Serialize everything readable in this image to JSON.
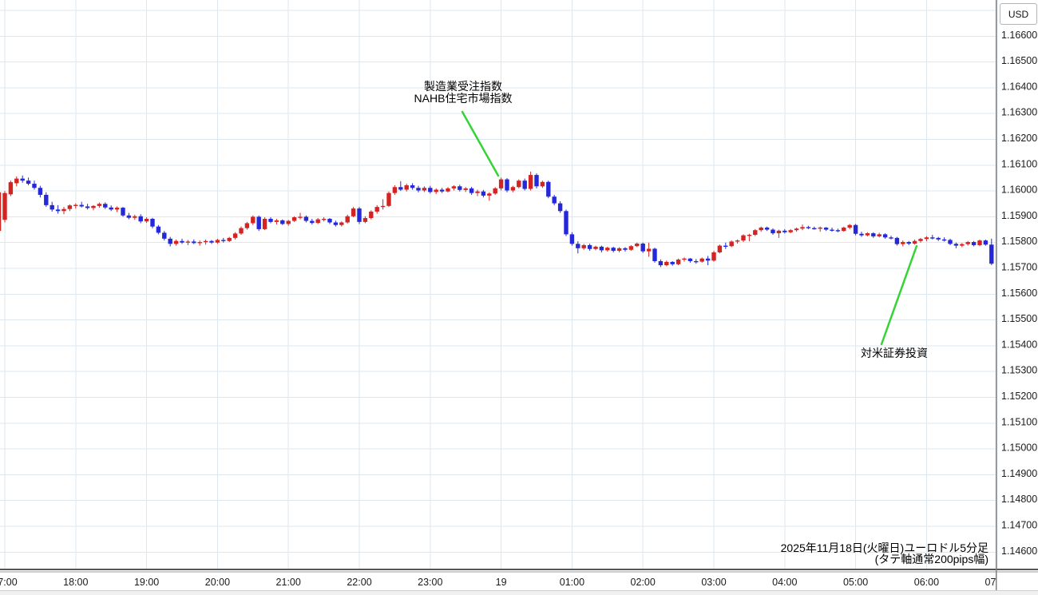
{
  "price_axis": {
    "unit_label": "USD",
    "labels": [
      "1.16600",
      "1.16500",
      "1.16400",
      "1.16300",
      "1.16200",
      "1.16100",
      "1.16000",
      "1.15900",
      "1.15800",
      "1.15700",
      "1.15600",
      "1.15500",
      "1.15400",
      "1.15300",
      "1.15200",
      "1.15100",
      "1.15000",
      "1.14900",
      "1.14800",
      "1.14700",
      "1.14600"
    ]
  },
  "time_axis": {
    "labels": [
      "17:00",
      "18:00",
      "19:00",
      "20:00",
      "21:00",
      "22:00",
      "23:00",
      "19",
      "01:00",
      "02:00",
      "03:00",
      "04:00",
      "05:00",
      "06:00",
      "07:00"
    ]
  },
  "caption": {
    "line1": "2025年11月18日(火曜日)ユーロドル5分足",
    "line2": "(タテ軸通常200pips幅)"
  },
  "annotations": [
    {
      "id": "economic-event-1",
      "lines": [
        "製造業受注指数",
        "NAHB住宅市場指数"
      ],
      "pointer_color": "#35d435",
      "line": [
        579,
        140,
        624,
        220
      ]
    },
    {
      "id": "economic-event-2",
      "lines": [
        "対米証券投資"
      ],
      "pointer_color": "#35d435",
      "line": [
        1148,
        308,
        1104,
        431
      ]
    }
  ],
  "chart_data": {
    "type": "candlestick",
    "instrument": "ユーロドル",
    "timeframe": "5分足",
    "date": "2025年11月18日(火曜日)",
    "up_color": "#d32424",
    "down_color": "#2428d8",
    "grid_color": "#dde7f0",
    "axis_line_color": "#808080",
    "y_min": 1.146,
    "y_max": 1.167,
    "y_step": 0.001,
    "y_labeled_max": 1.166,
    "legend_position": "none",
    "grid": true,
    "candles": [
      [
        "16:55",
        1.15845,
        1.16008,
        1.15838,
        1.15995
      ],
      [
        "17:00",
        1.15888,
        1.16,
        1.15878,
        1.15992
      ],
      [
        "17:05",
        1.15987,
        1.1604,
        1.1598,
        1.16034
      ],
      [
        "17:10",
        1.1603,
        1.16056,
        1.16018,
        1.16048
      ],
      [
        "17:15",
        1.16048,
        1.1606,
        1.16032,
        1.1604
      ],
      [
        "17:20",
        1.1604,
        1.16052,
        1.16022,
        1.16028
      ],
      [
        "17:25",
        1.16028,
        1.1604,
        1.16005,
        1.16012
      ],
      [
        "17:30",
        1.16012,
        1.1602,
        1.15975,
        1.15985
      ],
      [
        "17:35",
        1.15985,
        1.15995,
        1.15938,
        1.15945
      ],
      [
        "17:40",
        1.15945,
        1.15958,
        1.1592,
        1.15928
      ],
      [
        "17:45",
        1.15928,
        1.15945,
        1.15912,
        1.15922
      ],
      [
        "17:50",
        1.15922,
        1.15938,
        1.1591,
        1.1593
      ],
      [
        "17:55",
        1.1593,
        1.15948,
        1.15922,
        1.15944
      ],
      [
        "18:00",
        1.15944,
        1.15952,
        1.15932,
        1.15946
      ],
      [
        "18:05",
        1.15946,
        1.15958,
        1.15936,
        1.1594
      ],
      [
        "18:10",
        1.1594,
        1.1595,
        1.15928,
        1.15934
      ],
      [
        "18:15",
        1.15934,
        1.15945,
        1.15925,
        1.15942
      ],
      [
        "18:20",
        1.15942,
        1.15955,
        1.15935,
        1.1595
      ],
      [
        "18:25",
        1.1595,
        1.15956,
        1.1593,
        1.15936
      ],
      [
        "18:30",
        1.15936,
        1.15944,
        1.15922,
        1.15928
      ],
      [
        "18:35",
        1.15928,
        1.1594,
        1.15918,
        1.15935
      ],
      [
        "18:40",
        1.15935,
        1.15938,
        1.159,
        1.15905
      ],
      [
        "18:45",
        1.15905,
        1.15915,
        1.1589,
        1.15896
      ],
      [
        "18:50",
        1.15896,
        1.15908,
        1.15888,
        1.15902
      ],
      [
        "18:55",
        1.15902,
        1.1591,
        1.15875,
        1.15882
      ],
      [
        "19:00",
        1.15882,
        1.15898,
        1.15876,
        1.15892
      ],
      [
        "19:05",
        1.15892,
        1.15896,
        1.15855,
        1.15862
      ],
      [
        "19:10",
        1.15862,
        1.15868,
        1.15832,
        1.15838
      ],
      [
        "19:15",
        1.15838,
        1.15845,
        1.15808,
        1.15815
      ],
      [
        "19:20",
        1.15815,
        1.15822,
        1.15785,
        1.15795
      ],
      [
        "19:25",
        1.15795,
        1.15812,
        1.15788,
        1.15806
      ],
      [
        "19:30",
        1.15806,
        1.15815,
        1.15795,
        1.158
      ],
      [
        "19:35",
        1.158,
        1.1581,
        1.1579,
        1.15804
      ],
      [
        "19:40",
        1.15804,
        1.15812,
        1.15794,
        1.15798
      ],
      [
        "19:45",
        1.15798,
        1.15808,
        1.15788,
        1.15802
      ],
      [
        "19:50",
        1.15802,
        1.15812,
        1.15792,
        1.15806
      ],
      [
        "19:55",
        1.15806,
        1.1581,
        1.15795,
        1.158
      ],
      [
        "20:00",
        1.158,
        1.15815,
        1.15795,
        1.1581
      ],
      [
        "20:05",
        1.1581,
        1.15818,
        1.158,
        1.15806
      ],
      [
        "20:10",
        1.15806,
        1.15822,
        1.15802,
        1.15818
      ],
      [
        "20:15",
        1.15818,
        1.1584,
        1.15812,
        1.15835
      ],
      [
        "20:20",
        1.15835,
        1.15862,
        1.1583,
        1.15856
      ],
      [
        "20:25",
        1.15856,
        1.1588,
        1.1585,
        1.15875
      ],
      [
        "20:30",
        1.15875,
        1.15905,
        1.15868,
        1.159
      ],
      [
        "20:35",
        1.159,
        1.15905,
        1.15845,
        1.15852
      ],
      [
        "20:40",
        1.15852,
        1.15898,
        1.15848,
        1.15892
      ],
      [
        "20:45",
        1.15892,
        1.15898,
        1.15875,
        1.1588
      ],
      [
        "20:50",
        1.1588,
        1.15892,
        1.1587,
        1.15886
      ],
      [
        "20:55",
        1.15886,
        1.1589,
        1.15868,
        1.15872
      ],
      [
        "21:00",
        1.15872,
        1.15888,
        1.15865,
        1.15884
      ],
      [
        "21:05",
        1.15884,
        1.15902,
        1.1588,
        1.15898
      ],
      [
        "21:10",
        1.15898,
        1.15915,
        1.1589,
        1.159
      ],
      [
        "21:15",
        1.159,
        1.15905,
        1.15878,
        1.15884
      ],
      [
        "21:20",
        1.15884,
        1.15892,
        1.1587,
        1.15876
      ],
      [
        "21:25",
        1.15876,
        1.15895,
        1.15872,
        1.1589
      ],
      [
        "21:30",
        1.1589,
        1.15898,
        1.15882,
        1.15892
      ],
      [
        "21:35",
        1.15892,
        1.15895,
        1.15872,
        1.15878
      ],
      [
        "21:40",
        1.15878,
        1.15885,
        1.15862,
        1.15868
      ],
      [
        "21:45",
        1.15868,
        1.15882,
        1.15862,
        1.15878
      ],
      [
        "21:50",
        1.15878,
        1.15908,
        1.15874,
        1.15902
      ],
      [
        "21:55",
        1.15902,
        1.15938,
        1.15898,
        1.15932
      ],
      [
        "22:00",
        1.15932,
        1.15938,
        1.15872,
        1.1588
      ],
      [
        "22:05",
        1.1588,
        1.15902,
        1.15875,
        1.15895
      ],
      [
        "22:10",
        1.15895,
        1.15925,
        1.1589,
        1.1592
      ],
      [
        "22:15",
        1.1592,
        1.15945,
        1.15912,
        1.15938
      ],
      [
        "22:20",
        1.15938,
        1.15968,
        1.15928,
        1.15942
      ],
      [
        "22:25",
        1.15942,
        1.15998,
        1.15938,
        1.15992
      ],
      [
        "22:30",
        1.15992,
        1.16022,
        1.15985,
        1.16015
      ],
      [
        "22:35",
        1.16015,
        1.16038,
        1.16,
        1.16005
      ],
      [
        "22:40",
        1.16005,
        1.16028,
        1.15998,
        1.16022
      ],
      [
        "22:45",
        1.16022,
        1.1603,
        1.16005,
        1.16012
      ],
      [
        "22:50",
        1.16012,
        1.1602,
        1.15995,
        1.16002
      ],
      [
        "22:55",
        1.16002,
        1.16018,
        1.15996,
        1.16012
      ],
      [
        "23:00",
        1.16012,
        1.1602,
        1.1599,
        1.15996
      ],
      [
        "23:05",
        1.15996,
        1.1601,
        1.15988,
        1.16005
      ],
      [
        "23:10",
        1.16005,
        1.16012,
        1.15992,
        1.15998
      ],
      [
        "23:15",
        1.15998,
        1.16015,
        1.15994,
        1.1601
      ],
      [
        "23:20",
        1.1601,
        1.16022,
        1.16002,
        1.16018
      ],
      [
        "23:25",
        1.16018,
        1.16024,
        1.15998,
        1.16004
      ],
      [
        "23:30",
        1.16004,
        1.16015,
        1.15996,
        1.1601
      ],
      [
        "23:35",
        1.1601,
        1.16016,
        1.15985,
        1.15992
      ],
      [
        "23:40",
        1.15992,
        1.16005,
        1.1598,
        1.15998
      ],
      [
        "23:45",
        1.15998,
        1.16004,
        1.15975,
        1.15982
      ],
      [
        "23:50",
        1.15982,
        1.15995,
        1.15962,
        1.1599
      ],
      [
        "23:55",
        1.1599,
        1.16015,
        1.15985,
        1.1601
      ],
      [
        "00:00",
        1.1601,
        1.16052,
        1.16002,
        1.16045
      ],
      [
        "00:05",
        1.16045,
        1.1605,
        1.15995,
        1.16002
      ],
      [
        "00:10",
        1.16002,
        1.1602,
        1.15995,
        1.16015
      ],
      [
        "00:15",
        1.16015,
        1.16045,
        1.1601,
        1.1604
      ],
      [
        "00:20",
        1.1604,
        1.16048,
        1.16002,
        1.16008
      ],
      [
        "00:25",
        1.16008,
        1.16075,
        1.16002,
        1.16062
      ],
      [
        "00:30",
        1.16062,
        1.16068,
        1.1601,
        1.16018
      ],
      [
        "00:35",
        1.16018,
        1.1604,
        1.16012,
        1.16035
      ],
      [
        "00:40",
        1.16035,
        1.1604,
        1.15972,
        1.15978
      ],
      [
        "00:45",
        1.15978,
        1.15985,
        1.15945,
        1.15952
      ],
      [
        "00:50",
        1.15952,
        1.1596,
        1.15915,
        1.15922
      ],
      [
        "00:55",
        1.15922,
        1.15928,
        1.15825,
        1.15832
      ],
      [
        "01:00",
        1.15832,
        1.1584,
        1.15788,
        1.15795
      ],
      [
        "01:05",
        1.15795,
        1.15805,
        1.15758,
        1.15778
      ],
      [
        "01:10",
        1.15778,
        1.15795,
        1.15772,
        1.1579
      ],
      [
        "01:15",
        1.1579,
        1.15796,
        1.15768,
        1.15775
      ],
      [
        "01:20",
        1.15775,
        1.15788,
        1.1577,
        1.15784
      ],
      [
        "01:25",
        1.15784,
        1.15788,
        1.15762,
        1.1577
      ],
      [
        "01:30",
        1.1577,
        1.15784,
        1.15765,
        1.1578
      ],
      [
        "01:35",
        1.1578,
        1.15784,
        1.15762,
        1.15768
      ],
      [
        "01:40",
        1.15768,
        1.15782,
        1.15762,
        1.15778
      ],
      [
        "01:45",
        1.15778,
        1.15782,
        1.15765,
        1.15772
      ],
      [
        "01:50",
        1.15772,
        1.1579,
        1.15768,
        1.15786
      ],
      [
        "01:55",
        1.15786,
        1.158,
        1.15782,
        1.15796
      ],
      [
        "02:00",
        1.15796,
        1.158,
        1.1576,
        1.15766
      ],
      [
        "02:05",
        1.15766,
        1.158,
        1.15745,
        1.15776
      ],
      [
        "02:10",
        1.15776,
        1.1578,
        1.15722,
        1.15728
      ],
      [
        "02:15",
        1.15728,
        1.15735,
        1.15705,
        1.15712
      ],
      [
        "02:20",
        1.15712,
        1.1573,
        1.15708,
        1.15725
      ],
      [
        "02:25",
        1.15725,
        1.15728,
        1.1571,
        1.15716
      ],
      [
        "02:30",
        1.15716,
        1.15738,
        1.15712,
        1.15734
      ],
      [
        "02:35",
        1.15734,
        1.15742,
        1.15726,
        1.15738
      ],
      [
        "02:40",
        1.15738,
        1.1574,
        1.15722,
        1.15728
      ],
      [
        "02:45",
        1.15728,
        1.15736,
        1.15718,
        1.15726
      ],
      [
        "02:50",
        1.15726,
        1.15742,
        1.15722,
        1.15738
      ],
      [
        "02:55",
        1.15738,
        1.15748,
        1.15712,
        1.1573
      ],
      [
        "03:00",
        1.1573,
        1.15768,
        1.15726,
        1.15762
      ],
      [
        "03:05",
        1.15762,
        1.15792,
        1.15758,
        1.15788
      ],
      [
        "03:10",
        1.15788,
        1.158,
        1.15775,
        1.15786
      ],
      [
        "03:15",
        1.15786,
        1.15808,
        1.15782,
        1.15804
      ],
      [
        "03:20",
        1.15804,
        1.15812,
        1.15796,
        1.15808
      ],
      [
        "03:25",
        1.15808,
        1.15832,
        1.15802,
        1.15828
      ],
      [
        "03:30",
        1.15828,
        1.15834,
        1.15805,
        1.1583
      ],
      [
        "03:35",
        1.1583,
        1.15852,
        1.15825,
        1.15848
      ],
      [
        "03:40",
        1.15848,
        1.15862,
        1.15842,
        1.15858
      ],
      [
        "03:45",
        1.15858,
        1.15862,
        1.15845,
        1.1585
      ],
      [
        "03:50",
        1.1585,
        1.15855,
        1.1583,
        1.15836
      ],
      [
        "03:55",
        1.15836,
        1.1585,
        1.15818,
        1.15846
      ],
      [
        "04:00",
        1.15846,
        1.15852,
        1.15835,
        1.1584
      ],
      [
        "04:05",
        1.1584,
        1.15852,
        1.15836,
        1.15848
      ],
      [
        "04:10",
        1.15848,
        1.15858,
        1.15842,
        1.15854
      ],
      [
        "04:15",
        1.15854,
        1.1587,
        1.15848,
        1.1586
      ],
      [
        "04:20",
        1.1586,
        1.15865,
        1.15852,
        1.15856
      ],
      [
        "04:25",
        1.15856,
        1.15862,
        1.1585,
        1.15855
      ],
      [
        "04:30",
        1.15855,
        1.15862,
        1.15842,
        1.15858
      ],
      [
        "04:35",
        1.15858,
        1.1586,
        1.15845,
        1.1585
      ],
      [
        "04:40",
        1.1585,
        1.15858,
        1.15842,
        1.15848
      ],
      [
        "04:45",
        1.15848,
        1.15854,
        1.1584,
        1.15845
      ],
      [
        "04:50",
        1.15845,
        1.15862,
        1.15842,
        1.15858
      ],
      [
        "04:55",
        1.15858,
        1.15872,
        1.15852,
        1.15868
      ],
      [
        "05:00",
        1.15868,
        1.15872,
        1.15828,
        1.15834
      ],
      [
        "05:05",
        1.15834,
        1.15842,
        1.15822,
        1.15828
      ],
      [
        "05:10",
        1.15828,
        1.1584,
        1.15824,
        1.15836
      ],
      [
        "05:15",
        1.15836,
        1.1584,
        1.15818,
        1.15824
      ],
      [
        "05:20",
        1.15824,
        1.15838,
        1.1582,
        1.15832
      ],
      [
        "05:25",
        1.15832,
        1.15836,
        1.15815,
        1.1582
      ],
      [
        "05:30",
        1.1582,
        1.15826,
        1.15812,
        1.15818
      ],
      [
        "05:35",
        1.15818,
        1.15822,
        1.15788,
        1.15794
      ],
      [
        "05:40",
        1.15794,
        1.15808,
        1.15785,
        1.15802
      ],
      [
        "05:45",
        1.15802,
        1.15806,
        1.1579,
        1.15796
      ],
      [
        "05:50",
        1.15796,
        1.15812,
        1.15792,
        1.15806
      ],
      [
        "05:55",
        1.15806,
        1.15818,
        1.158,
        1.15814
      ],
      [
        "06:00",
        1.15814,
        1.15825,
        1.15805,
        1.1582
      ],
      [
        "06:05",
        1.1582,
        1.1583,
        1.15812,
        1.15818
      ],
      [
        "06:10",
        1.15818,
        1.15822,
        1.15806,
        1.15812
      ],
      [
        "06:15",
        1.15812,
        1.1582,
        1.15804,
        1.1581
      ],
      [
        "06:20",
        1.1581,
        1.15815,
        1.1579,
        1.15795
      ],
      [
        "06:25",
        1.15795,
        1.158,
        1.15778,
        1.15788
      ],
      [
        "06:30",
        1.15788,
        1.15798,
        1.15782,
        1.15794
      ],
      [
        "06:35",
        1.15794,
        1.15806,
        1.15788,
        1.15802
      ],
      [
        "06:40",
        1.15802,
        1.15806,
        1.15785,
        1.1579
      ],
      [
        "06:45",
        1.1579,
        1.15812,
        1.15786,
        1.15808
      ],
      [
        "06:50",
        1.15808,
        1.15812,
        1.15788,
        1.15792
      ],
      [
        "06:55",
        1.15792,
        1.15815,
        1.15712,
        1.15718
      ]
    ]
  }
}
